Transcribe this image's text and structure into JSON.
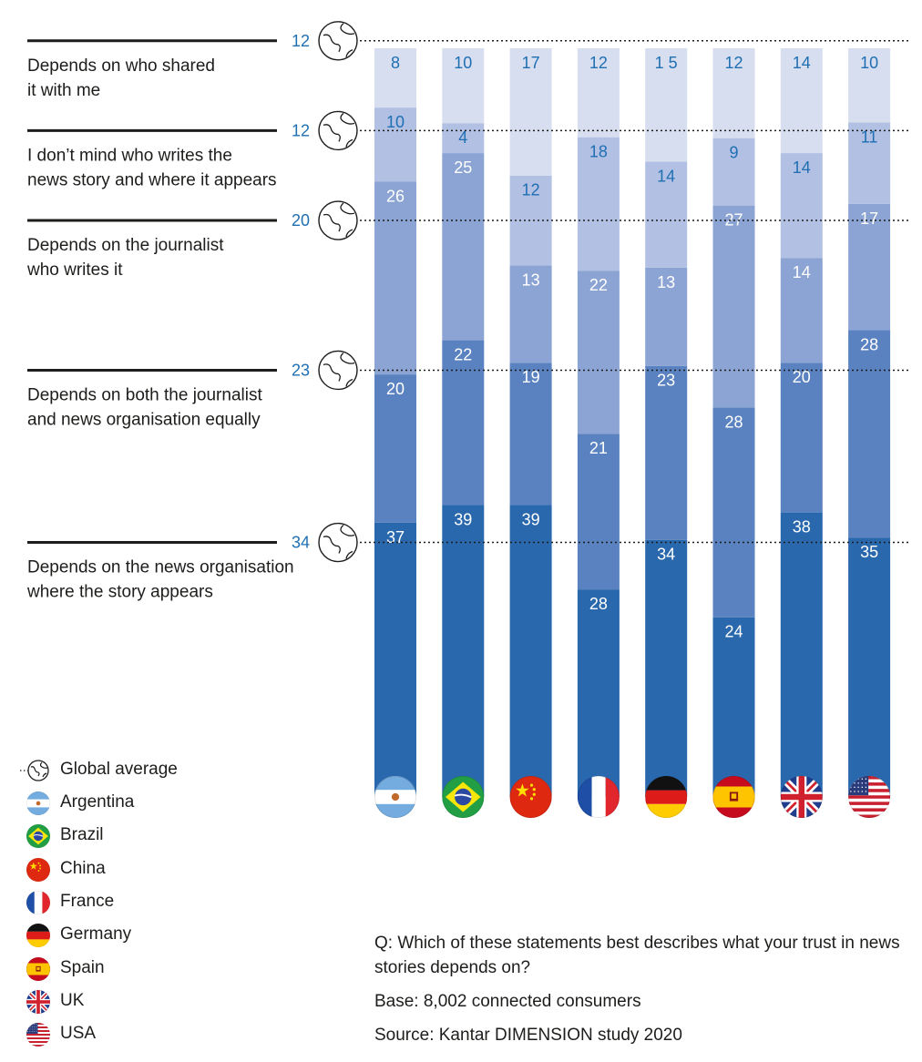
{
  "chart_data": {
    "type": "bar",
    "stacked": true,
    "unit": "%",
    "categories": [
      "Argentina",
      "Brazil",
      "China",
      "France",
      "Germany",
      "Spain",
      "UK",
      "USA"
    ],
    "series": [
      {
        "name": "Depends on the news organisation where the story appears",
        "color": "#2a68ad",
        "values": [
          37,
          39,
          39,
          28,
          34,
          24,
          38,
          35
        ],
        "global_average": 34
      },
      {
        "name": "Depends on both the journalist and news organisation equally",
        "color": "#5a82c0",
        "values": [
          20,
          22,
          19,
          21,
          23,
          28,
          20,
          28
        ],
        "global_average": 23
      },
      {
        "name": "Depends on the journalist who writes it",
        "color": "#8ca4d3",
        "values": [
          26,
          25,
          13,
          22,
          13,
          27,
          14,
          17
        ],
        "global_average": 20
      },
      {
        "name": "I don’t mind who writes the news story and where it appears",
        "color": "#b2c0e3",
        "values": [
          10,
          4,
          12,
          18,
          14,
          9,
          14,
          11
        ],
        "global_average": 12
      },
      {
        "name": "Depends on who shared it with me",
        "color": "#d7deef",
        "values": [
          8,
          10,
          17,
          12,
          15,
          12,
          14,
          10
        ],
        "global_average": 12
      }
    ],
    "value_labels": [
      [
        "37",
        "39",
        "39",
        "28",
        "34",
        "24",
        "38",
        "35"
      ],
      [
        "20",
        "22",
        "19",
        "21",
        "23",
        "28",
        "20",
        "28"
      ],
      [
        "26",
        "25",
        "13",
        "22",
        "13",
        "27",
        "14",
        "17"
      ],
      [
        "10",
        "4",
        "12",
        "18",
        "14",
        "9",
        "14",
        "11"
      ],
      [
        "8",
        "10",
        "17",
        "12",
        "1 5",
        "12",
        "14",
        "10"
      ]
    ],
    "global_average_labels": [
      "34",
      "23",
      "20",
      "12",
      "12"
    ],
    "category_labels": [
      [
        "Depends on the news organisation",
        "where the story appears"
      ],
      [
        "Depends on both the journalist",
        "and news organisation equally"
      ],
      [
        "Depends on the journalist",
        "who writes it"
      ],
      [
        "I don’t mind who writes the",
        "news story and where it appears"
      ],
      [
        "Depends on who shared",
        "it with me"
      ]
    ],
    "ylim": [
      0,
      100
    ],
    "accent_color": "#2a68ad",
    "label_color": "#1f6fb3"
  },
  "legend": {
    "global_average": "Global average",
    "countries": [
      "Argentina",
      "Brazil",
      "China",
      "France",
      "Germany",
      "Spain",
      "UK",
      "USA"
    ]
  },
  "notes": {
    "question": "Q: Which of these statements best describes what your trust in news stories depends on?",
    "base": "Base: 8,002 connected consumers",
    "source": "Source: Kantar DIMENSION study 2020"
  }
}
